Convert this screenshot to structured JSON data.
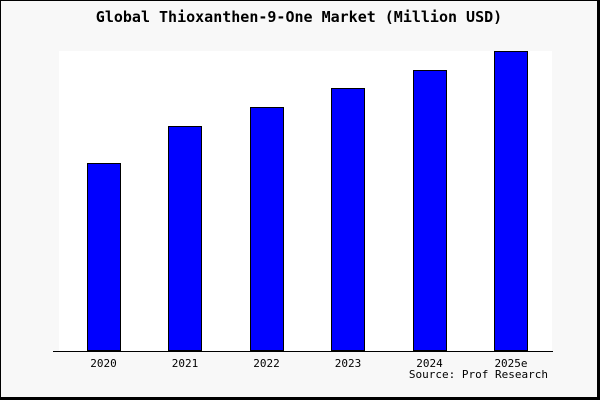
{
  "chart_data": {
    "type": "bar",
    "title": "Global Thioxanthen-9-One Market (Million USD)",
    "categories": [
      "2020",
      "2021",
      "2022",
      "2023",
      "2024",
      "2025e"
    ],
    "values": [
      150,
      180,
      195,
      210,
      225,
      240
    ],
    "value_note": "Y-axis is unlabeled in the image; values are estimated relative units proportional to measured bar heights (ratios 0.625 : 0.75 : 0.8125 : 0.875 : 0.9375 : 1.0).",
    "xlabel": "",
    "ylabel": "",
    "ylim": [
      0,
      240
    ],
    "grid": false,
    "legend": false,
    "source": "Source: Prof Research",
    "colors": {
      "bar_fill": "#0000ff",
      "bar_border": "#000000",
      "page_background": "#f8f8f8",
      "plot_background": "#ffffff",
      "axis": "#000000",
      "text": "#000000"
    }
  }
}
